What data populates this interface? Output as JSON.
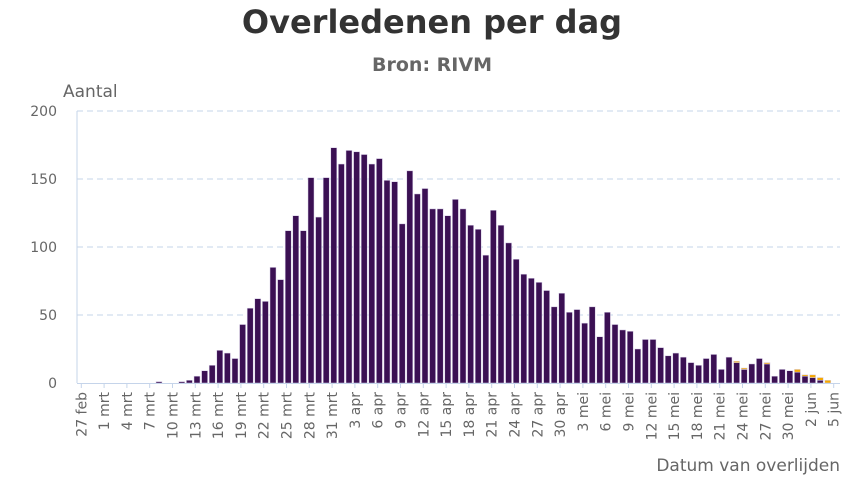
{
  "chart_data": {
    "type": "bar",
    "stacked": true,
    "title": "Overledenen per dag",
    "subtitle": "Bron: RIVM",
    "ylabel": "Aantal",
    "xlabel": "Datum van overlijden",
    "ylim": [
      0,
      200
    ],
    "yticks": [
      0,
      50,
      100,
      150,
      200
    ],
    "grid": true,
    "legend": "none",
    "start_date": "27 feb",
    "xtick_labels": [
      "27 feb",
      "1 mrt",
      "4 mrt",
      "7 mrt",
      "10 mrt",
      "13 mrt",
      "16 mrt",
      "19 mrt",
      "22 mrt",
      "25 mrt",
      "28 mrt",
      "31 mrt",
      "3 apr",
      "6 apr",
      "9 apr",
      "12 apr",
      "15 apr",
      "18 apr",
      "21 apr",
      "24 apr",
      "27 apr",
      "30 apr",
      "3 mei",
      "6 mei",
      "9 mei",
      "12 mei",
      "15 mei",
      "18 mei",
      "21 mei",
      "24 mei",
      "27 mei",
      "30 mei",
      "2 jun",
      "5 jun"
    ],
    "series": [
      {
        "color": "#3b1053",
        "values": [
          0,
          0,
          0,
          0,
          0,
          0,
          0,
          0,
          0,
          0,
          1,
          0,
          0,
          1,
          2,
          5,
          9,
          13,
          24,
          22,
          18,
          43,
          55,
          62,
          60,
          85,
          76,
          112,
          123,
          112,
          151,
          122,
          151,
          173,
          161,
          171,
          170,
          168,
          161,
          165,
          149,
          148,
          117,
          156,
          139,
          143,
          128,
          128,
          123,
          135,
          128,
          116,
          113,
          94,
          127,
          116,
          103,
          91,
          80,
          77,
          74,
          68,
          56,
          66,
          52,
          54,
          44,
          56,
          34,
          52,
          43,
          39,
          38,
          25,
          32,
          32,
          26,
          20,
          22,
          19,
          15,
          13,
          18,
          21,
          10,
          19,
          15,
          10,
          14,
          18,
          14,
          5,
          10,
          9,
          8,
          5,
          4,
          2,
          0,
          0
        ]
      },
      {
        "color": "#f5a800",
        "values": [
          0,
          0,
          0,
          0,
          0,
          0,
          0,
          0,
          0,
          0,
          0,
          0,
          0,
          0,
          0,
          0,
          0,
          0,
          0,
          0,
          0,
          0,
          0,
          0,
          0,
          0,
          0,
          0,
          0,
          0,
          0,
          0,
          0,
          0,
          0,
          0,
          0,
          0,
          0,
          0,
          0,
          0,
          0,
          0,
          0,
          0,
          0,
          0,
          0,
          0,
          0,
          0,
          0,
          0,
          0,
          0,
          0,
          0,
          0,
          0,
          0,
          0,
          0,
          0,
          0,
          0,
          0,
          0,
          0,
          0,
          0,
          0,
          0,
          0,
          0,
          0,
          0,
          0,
          0,
          0,
          0,
          0,
          0,
          0,
          0,
          0,
          1,
          1,
          0,
          0,
          1,
          0,
          0,
          0,
          2,
          1,
          2,
          2,
          2,
          0
        ]
      }
    ]
  }
}
